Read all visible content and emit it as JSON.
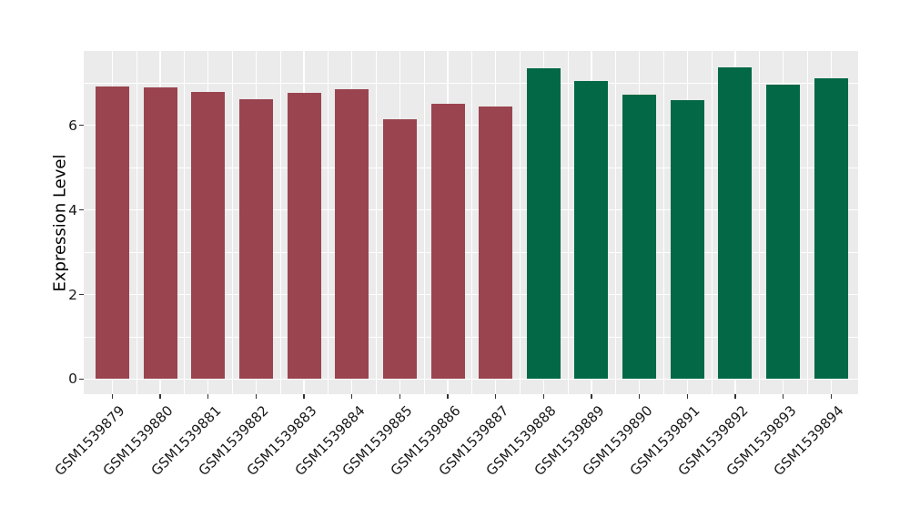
{
  "chart_data": {
    "type": "bar",
    "title": "",
    "xlabel": "",
    "ylabel": "Expression Level",
    "categories": [
      "GSM1539879",
      "GSM1539880",
      "GSM1539881",
      "GSM1539882",
      "GSM1539883",
      "GSM1539884",
      "GSM1539885",
      "GSM1539886",
      "GSM1539887",
      "GSM1539888",
      "GSM1539889",
      "GSM1539890",
      "GSM1539891",
      "GSM1539892",
      "GSM1539893",
      "GSM1539894"
    ],
    "values": [
      6.93,
      6.89,
      6.79,
      6.61,
      6.77,
      6.86,
      6.14,
      6.51,
      6.45,
      7.34,
      7.04,
      6.73,
      6.6,
      7.37,
      6.96,
      7.12
    ],
    "bar_colors": [
      "#9A4450",
      "#9A4450",
      "#9A4450",
      "#9A4450",
      "#9A4450",
      "#9A4450",
      "#9A4450",
      "#9A4450",
      "#9A4450",
      "#026845",
      "#026845",
      "#026845",
      "#026845",
      "#026845",
      "#026845",
      "#026845"
    ],
    "color_groups": [
      {
        "color": "#9A4450",
        "first_category": "GSM1539879",
        "last_category": "GSM1539887"
      },
      {
        "color": "#026845",
        "first_category": "GSM1539888",
        "last_category": "GSM1539894"
      }
    ],
    "yticks": [
      0,
      2,
      4,
      6
    ],
    "ytick_labels": [
      "0",
      "2",
      "4",
      "6"
    ],
    "minor_yticks": [
      1,
      3,
      5,
      7
    ],
    "ylim": [
      -0.37,
      7.75
    ],
    "grid": "white major and minor gridlines on gray panel, vertical lines at each category and midpoints",
    "legend": "none",
    "panel_bg": "#EBEBEB",
    "grid_color": "#FFFFFF",
    "tick_color": "#333333",
    "text_color": "#1A1A1A"
  }
}
